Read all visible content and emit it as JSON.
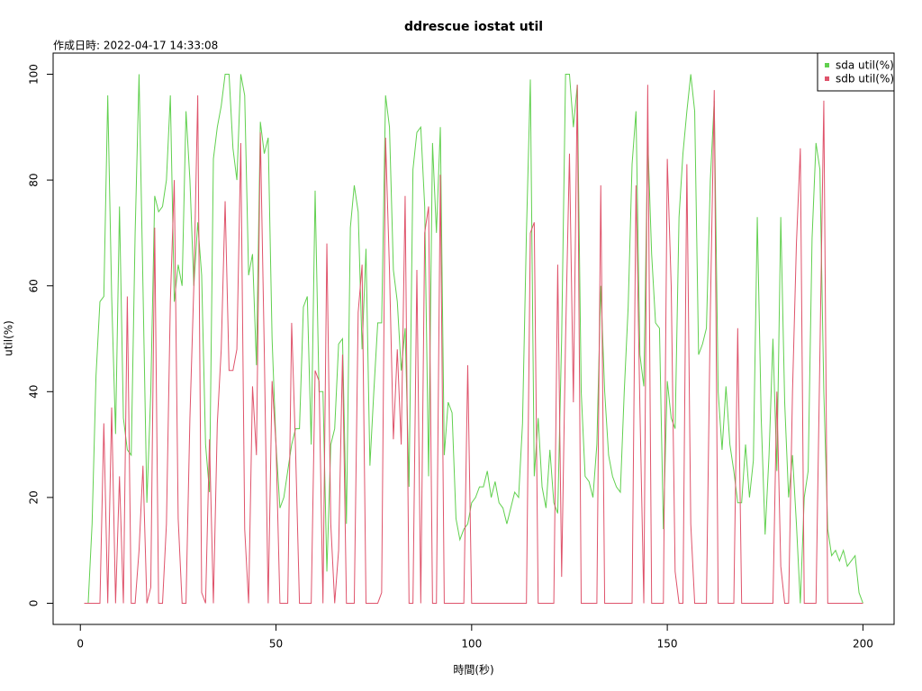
{
  "chart_data": {
    "type": "line",
    "title": "ddrescue iostat util",
    "subtitle": "作成日時: 2022-04-17 14:33:08",
    "x_label": "時間(秒)",
    "y_label": "util(%)",
    "xlim": [
      -6.96,
      207.96
    ],
    "ylim": [
      -4,
      104
    ],
    "xticks": [
      0,
      50,
      100,
      150,
      200
    ],
    "yticks": [
      0,
      20,
      40,
      60,
      80,
      100
    ],
    "legend": "top-right",
    "x": [
      1,
      2,
      3,
      4,
      5,
      6,
      7,
      8,
      9,
      10,
      11,
      12,
      13,
      14,
      15,
      16,
      17,
      18,
      19,
      20,
      21,
      22,
      23,
      24,
      25,
      26,
      27,
      28,
      29,
      30,
      31,
      32,
      33,
      34,
      35,
      36,
      37,
      38,
      39,
      40,
      41,
      42,
      43,
      44,
      45,
      46,
      47,
      48,
      49,
      50,
      51,
      52,
      53,
      54,
      55,
      56,
      57,
      58,
      59,
      60,
      61,
      62,
      63,
      64,
      65,
      66,
      67,
      68,
      69,
      70,
      71,
      72,
      73,
      74,
      75,
      76,
      77,
      78,
      79,
      80,
      81,
      82,
      83,
      84,
      85,
      86,
      87,
      88,
      89,
      90,
      91,
      92,
      93,
      94,
      95,
      96,
      97,
      98,
      99,
      100,
      101,
      102,
      103,
      104,
      105,
      106,
      107,
      108,
      109,
      110,
      111,
      112,
      113,
      114,
      115,
      116,
      117,
      118,
      119,
      120,
      121,
      122,
      123,
      124,
      125,
      126,
      127,
      128,
      129,
      130,
      131,
      132,
      133,
      134,
      135,
      136,
      137,
      138,
      139,
      140,
      141,
      142,
      143,
      144,
      145,
      146,
      147,
      148,
      149,
      150,
      151,
      152,
      153,
      154,
      155,
      156,
      157,
      158,
      159,
      160,
      161,
      162,
      163,
      164,
      165,
      166,
      167,
      168,
      169,
      170,
      171,
      172,
      173,
      174,
      175,
      176,
      177,
      178,
      179,
      180,
      181,
      182,
      183,
      184,
      185,
      186,
      187,
      188,
      189,
      190,
      191,
      192,
      193,
      194,
      195,
      196,
      197,
      198,
      199,
      200
    ],
    "series": [
      {
        "name": "sda util(%)",
        "color": "#61D04F",
        "values": [
          0,
          0,
          15,
          43,
          57,
          58,
          96,
          58,
          32,
          75,
          35,
          29,
          28,
          70,
          100,
          60,
          19,
          40,
          77,
          74,
          75,
          80,
          96,
          57,
          64,
          60,
          93,
          80,
          60,
          72,
          62,
          30,
          21,
          84,
          90,
          94,
          100,
          100,
          86,
          80,
          100,
          96,
          62,
          66,
          45,
          91,
          85,
          88,
          50,
          30,
          18,
          20,
          25,
          30,
          33,
          33,
          56,
          58,
          30,
          78,
          40,
          40,
          6,
          30,
          33,
          49,
          50,
          15,
          71,
          79,
          74,
          48,
          67,
          26,
          40,
          53,
          53,
          96,
          90,
          63,
          57,
          44,
          52,
          22,
          82,
          89,
          90,
          75,
          24,
          87,
          70,
          90,
          28,
          38,
          36,
          16,
          12,
          14,
          15,
          19,
          20,
          22,
          22,
          25,
          20,
          23,
          19,
          18,
          15,
          18,
          21,
          20,
          34,
          70,
          99,
          24,
          35,
          22,
          18,
          29,
          19,
          17,
          50,
          100,
          100,
          90,
          98,
          40,
          24,
          23,
          20,
          30,
          60,
          40,
          28,
          24,
          22,
          21,
          40,
          56,
          83,
          93,
          47,
          41,
          88,
          66,
          53,
          52,
          14,
          42,
          35,
          33,
          73,
          85,
          93,
          100,
          93,
          47,
          49,
          52,
          80,
          95,
          40,
          29,
          41,
          30,
          25,
          19,
          19,
          30,
          20,
          27,
          73,
          35,
          13,
          28,
          50,
          25,
          73,
          38,
          20,
          28,
          15,
          0,
          20,
          25,
          69,
          87,
          82,
          40,
          14,
          9,
          10,
          8,
          10,
          7,
          8,
          9,
          2,
          0
        ]
      },
      {
        "name": "sdb util(%)",
        "color": "#DF536B",
        "values": [
          0,
          0,
          0,
          0,
          0,
          34,
          0,
          37,
          0,
          24,
          0,
          58,
          0,
          0,
          10,
          26,
          0,
          3,
          71,
          0,
          0,
          15,
          57,
          80,
          16,
          0,
          0,
          35,
          60,
          96,
          2,
          0,
          31,
          0,
          34,
          48,
          76,
          44,
          44,
          48,
          87,
          14,
          0,
          41,
          28,
          89,
          48,
          0,
          42,
          30,
          0,
          0,
          0,
          53,
          29,
          0,
          0,
          0,
          0,
          44,
          42,
          0,
          68,
          15,
          0,
          10,
          47,
          0,
          0,
          0,
          55,
          64,
          0,
          0,
          0,
          0,
          2,
          88,
          63,
          31,
          48,
          30,
          77,
          0,
          0,
          63,
          0,
          70,
          75,
          0,
          0,
          81,
          0,
          0,
          0,
          0,
          0,
          0,
          45,
          0,
          0,
          0,
          0,
          0,
          0,
          0,
          0,
          0,
          0,
          0,
          0,
          0,
          0,
          0,
          70,
          72,
          0,
          0,
          0,
          0,
          0,
          64,
          5,
          50,
          85,
          38,
          98,
          0,
          0,
          0,
          0,
          0,
          79,
          0,
          0,
          0,
          0,
          0,
          0,
          0,
          0,
          79,
          37,
          0,
          98,
          0,
          0,
          0,
          0,
          84,
          60,
          6,
          0,
          0,
          83,
          15,
          0,
          0,
          0,
          0,
          55,
          97,
          0,
          0,
          0,
          0,
          0,
          52,
          0,
          0,
          0,
          0,
          0,
          0,
          0,
          0,
          0,
          40,
          7,
          0,
          0,
          40,
          68,
          86,
          0,
          0,
          0,
          0,
          47,
          95,
          0,
          0,
          0,
          0,
          0,
          0,
          0,
          0,
          0,
          0
        ]
      }
    ]
  }
}
